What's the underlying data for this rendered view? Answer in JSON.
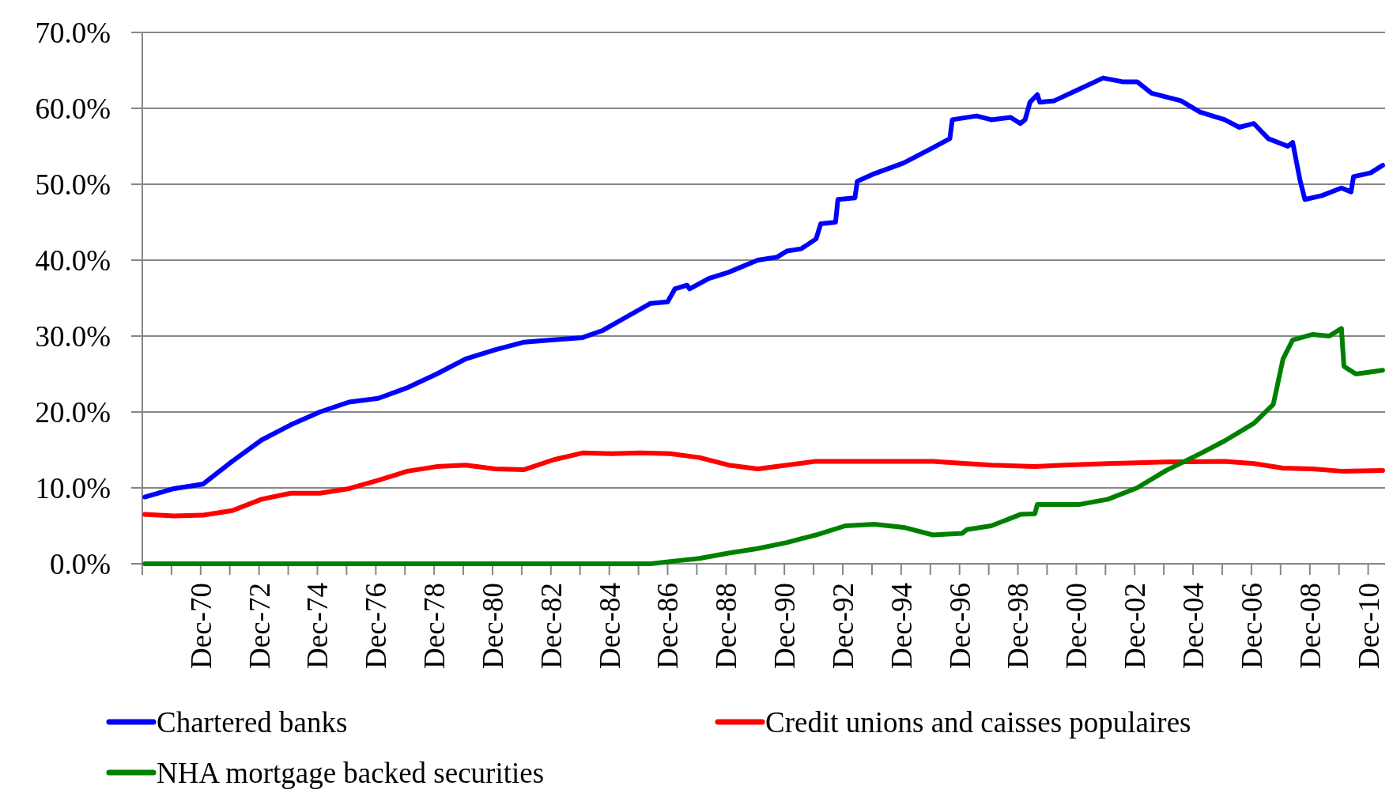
{
  "chart_data": {
    "type": "line",
    "xlim": [
      "1968-12",
      "2011-07"
    ],
    "xticks": [
      {
        "value": "1969-12",
        "label": null
      },
      {
        "value": "1970-12",
        "label": "Dec-70"
      },
      {
        "value": "1971-12",
        "label": null
      },
      {
        "value": "1972-12",
        "label": "Dec-72"
      },
      {
        "value": "1973-12",
        "label": null
      },
      {
        "value": "1974-12",
        "label": "Dec-74"
      },
      {
        "value": "1975-12",
        "label": null
      },
      {
        "value": "1976-12",
        "label": "Dec-76"
      },
      {
        "value": "1977-12",
        "label": null
      },
      {
        "value": "1978-12",
        "label": "Dec-78"
      },
      {
        "value": "1979-12",
        "label": null
      },
      {
        "value": "1980-12",
        "label": "Dec-80"
      },
      {
        "value": "1981-12",
        "label": null
      },
      {
        "value": "1982-12",
        "label": "Dec-82"
      },
      {
        "value": "1983-12",
        "label": null
      },
      {
        "value": "1984-12",
        "label": "Dec-84"
      },
      {
        "value": "1985-12",
        "label": null
      },
      {
        "value": "1986-12",
        "label": "Dec-86"
      },
      {
        "value": "1987-12",
        "label": null
      },
      {
        "value": "1988-12",
        "label": "Dec-88"
      },
      {
        "value": "1989-12",
        "label": null
      },
      {
        "value": "1990-12",
        "label": "Dec-90"
      },
      {
        "value": "1991-12",
        "label": null
      },
      {
        "value": "1992-12",
        "label": "Dec-92"
      },
      {
        "value": "1993-12",
        "label": null
      },
      {
        "value": "1994-12",
        "label": "Dec-94"
      },
      {
        "value": "1995-12",
        "label": null
      },
      {
        "value": "1996-12",
        "label": "Dec-96"
      },
      {
        "value": "1997-12",
        "label": null
      },
      {
        "value": "1998-12",
        "label": "Dec-98"
      },
      {
        "value": "1999-12",
        "label": null
      },
      {
        "value": "2000-12",
        "label": "Dec-00"
      },
      {
        "value": "2001-12",
        "label": null
      },
      {
        "value": "2002-12",
        "label": "Dec-02"
      },
      {
        "value": "2003-12",
        "label": null
      },
      {
        "value": "2004-12",
        "label": "Dec-04"
      },
      {
        "value": "2005-12",
        "label": null
      },
      {
        "value": "2006-12",
        "label": "Dec-06"
      },
      {
        "value": "2007-12",
        "label": null
      },
      {
        "value": "2008-12",
        "label": "Dec-08"
      },
      {
        "value": "2009-12",
        "label": null
      },
      {
        "value": "2010-12",
        "label": "Dec-10"
      }
    ],
    "ylim": [
      0,
      70
    ],
    "yticks": [
      {
        "value": 0,
        "label": "0.0%"
      },
      {
        "value": 10,
        "label": "10.0%"
      },
      {
        "value": 20,
        "label": "20.0%"
      },
      {
        "value": 30,
        "label": "30.0%"
      },
      {
        "value": 40,
        "label": "40.0%"
      },
      {
        "value": 50,
        "label": "50.0%"
      },
      {
        "value": 60,
        "label": "60.0%"
      },
      {
        "value": 70,
        "label": "70.0%"
      }
    ],
    "grid": "y",
    "legend": "bottom",
    "marker": "none",
    "line_style": "solid",
    "series": [
      {
        "name": "Chartered banks",
        "color": "#0000ff",
        "x": [
          "1969-01",
          "1970-01",
          "1971-01",
          "1972-01",
          "1973-01",
          "1974-01",
          "1975-01",
          "1976-01",
          "1977-01",
          "1978-01",
          "1979-01",
          "1980-01",
          "1981-01",
          "1982-01",
          "1983-01",
          "1984-01",
          "1984-09",
          "1985-07",
          "1986-05",
          "1986-12",
          "1987-03",
          "1987-08",
          "1987-09",
          "1988-05",
          "1989-01",
          "1990-01",
          "1990-09",
          "1991-01",
          "1991-07",
          "1992-01",
          "1992-03",
          "1992-09",
          "1992-10",
          "1993-05",
          "1993-06",
          "1994-01",
          "1995-01",
          "1996-01",
          "1996-08",
          "1996-09",
          "1997-07",
          "1998-01",
          "1998-09",
          "1999-01",
          "1999-03",
          "1999-05",
          "1999-08",
          "1999-09",
          "2000-03",
          "2001-01",
          "2001-11",
          "2002-07",
          "2003-01",
          "2003-07",
          "2004-07",
          "2005-03",
          "2006-01",
          "2006-07",
          "2007-01",
          "2007-07",
          "2008-03",
          "2008-05",
          "2008-08",
          "2008-10",
          "2009-05",
          "2010-01",
          "2010-05",
          "2010-06",
          "2011-01",
          "2011-06"
        ],
        "values": [
          8.8,
          9.9,
          10.5,
          13.5,
          16.3,
          18.3,
          20.0,
          21.3,
          21.8,
          23.2,
          25.0,
          27.0,
          28.2,
          29.2,
          29.5,
          29.8,
          30.7,
          32.5,
          34.3,
          34.5,
          36.2,
          36.7,
          36.2,
          37.6,
          38.4,
          40.0,
          40.4,
          41.2,
          41.5,
          42.8,
          44.8,
          45.0,
          48.0,
          48.2,
          50.4,
          51.4,
          52.8,
          54.8,
          56.0,
          58.5,
          59.0,
          58.5,
          58.8,
          58.0,
          58.5,
          60.8,
          61.8,
          60.8,
          61.0,
          62.5,
          64.0,
          63.5,
          63.5,
          62.0,
          61.0,
          59.5,
          58.5,
          57.5,
          58.0,
          56.0,
          55.0,
          55.5,
          50.5,
          48.0,
          48.5,
          49.5,
          49.0,
          51.0,
          51.5,
          52.5
        ]
      },
      {
        "name": "Credit unions and caisses populaires",
        "color": "#ff0000",
        "x": [
          "1969-01",
          "1970-01",
          "1971-01",
          "1972-01",
          "1973-01",
          "1974-01",
          "1975-01",
          "1976-01",
          "1977-01",
          "1978-01",
          "1979-01",
          "1980-01",
          "1981-01",
          "1982-01",
          "1983-01",
          "1984-01",
          "1985-01",
          "1986-01",
          "1987-01",
          "1988-01",
          "1989-01",
          "1990-01",
          "1991-01",
          "1992-01",
          "1993-01",
          "1994-01",
          "1996-01",
          "1998-01",
          "1999-07",
          "2000-07",
          "2002-01",
          "2004-01",
          "2006-01",
          "2007-01",
          "2008-01",
          "2009-01",
          "2010-01",
          "2011-06"
        ],
        "values": [
          6.5,
          6.3,
          6.4,
          7.0,
          8.5,
          9.3,
          9.3,
          9.9,
          11.0,
          12.2,
          12.8,
          13.0,
          12.5,
          12.4,
          13.7,
          14.6,
          14.5,
          14.6,
          14.5,
          14.0,
          13.0,
          12.5,
          13.0,
          13.5,
          13.5,
          13.5,
          13.5,
          13.0,
          12.8,
          13.0,
          13.2,
          13.4,
          13.5,
          13.2,
          12.6,
          12.5,
          12.2,
          12.3
        ]
      },
      {
        "name": "NHA mortgage backed securities",
        "color": "#008000",
        "x": [
          "1969-01",
          "1986-05",
          "1987-01",
          "1988-01",
          "1989-01",
          "1990-01",
          "1991-01",
          "1992-01",
          "1993-01",
          "1994-01",
          "1995-01",
          "1996-01",
          "1997-01",
          "1997-03",
          "1998-01",
          "1999-01",
          "1999-07",
          "1999-08",
          "2001-01",
          "2002-01",
          "2003-01",
          "2004-01",
          "2005-01",
          "2006-01",
          "2007-01",
          "2007-09",
          "2008-01",
          "2008-05",
          "2009-01",
          "2009-08",
          "2010-01",
          "2010-02",
          "2010-07",
          "2011-06"
        ],
        "values": [
          0,
          0,
          0.3,
          0.7,
          1.4,
          2.0,
          2.8,
          3.8,
          5.0,
          5.2,
          4.8,
          3.8,
          4.0,
          4.5,
          5.0,
          6.5,
          6.6,
          7.8,
          7.8,
          8.5,
          10.0,
          12.3,
          14.2,
          16.2,
          18.5,
          21.0,
          27.0,
          29.5,
          30.2,
          30.0,
          31.0,
          26.0,
          25.0,
          25.5
        ]
      }
    ]
  }
}
